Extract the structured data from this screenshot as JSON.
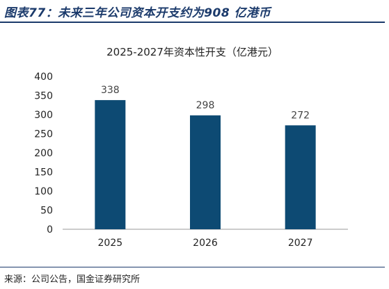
{
  "figure_title": "图表77：未来三年公司资本开支约为908 亿港币",
  "source": "来源：公司公告，国金证券研究所",
  "colors": {
    "bar": "#0d4a73",
    "title": "#1b3a6b"
  },
  "chart_data": {
    "type": "bar",
    "title": "2025-2027年资本性开支（亿港元）",
    "xlabel": "",
    "ylabel": "",
    "categories": [
      "2025",
      "2026",
      "2027"
    ],
    "values": [
      338,
      298,
      272
    ],
    "data_labels": [
      "338",
      "298",
      "272"
    ],
    "ylim": [
      0,
      400
    ],
    "yticks": [
      0,
      50,
      100,
      150,
      200,
      250,
      300,
      350,
      400
    ],
    "grid": false,
    "legend": "none"
  }
}
